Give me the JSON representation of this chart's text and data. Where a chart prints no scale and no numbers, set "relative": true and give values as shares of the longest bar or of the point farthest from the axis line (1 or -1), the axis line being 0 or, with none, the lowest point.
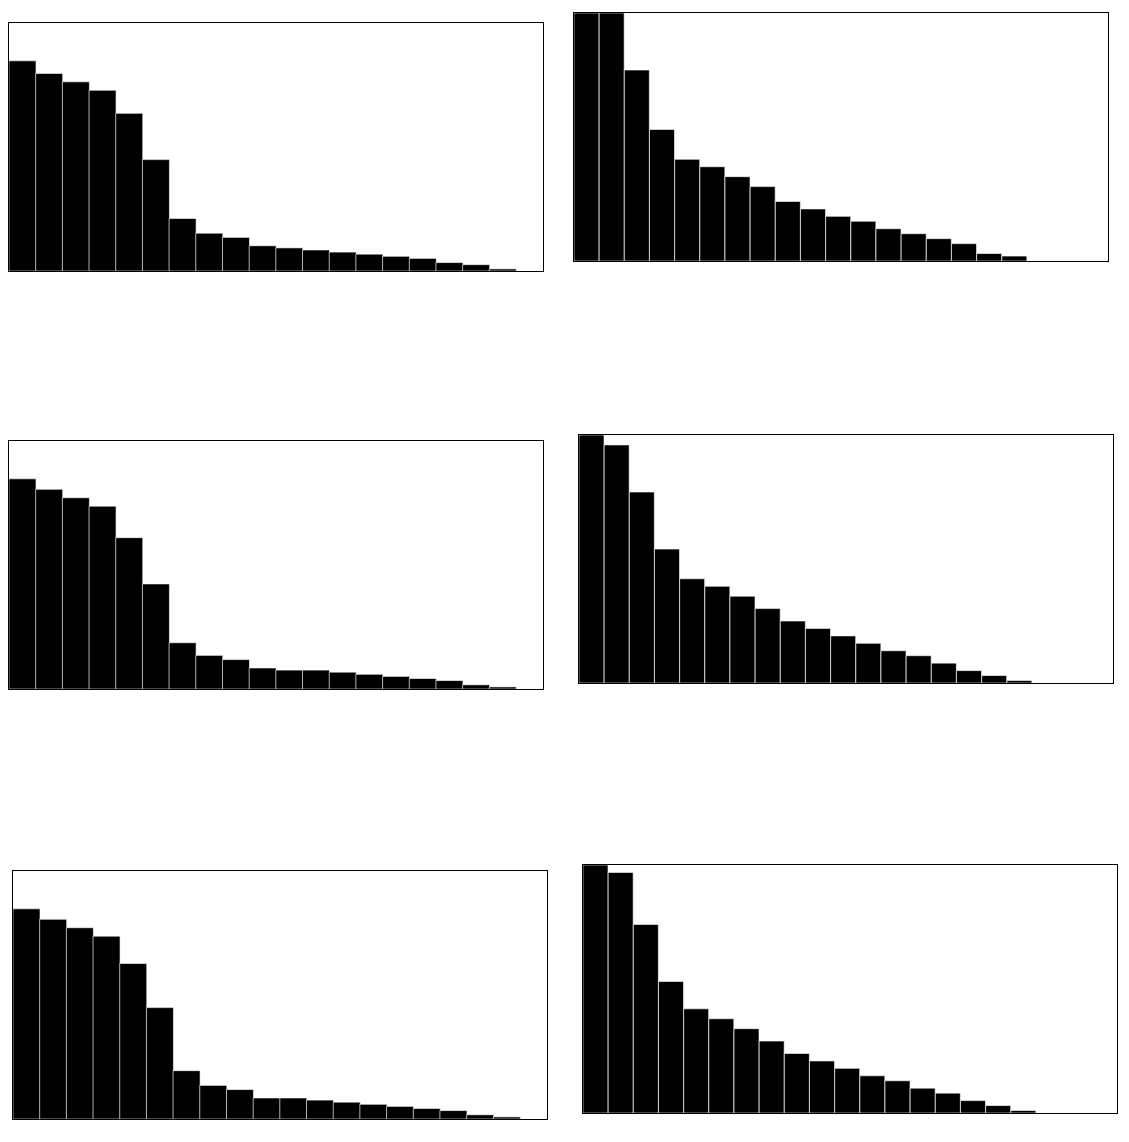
{
  "chart_data": [
    {
      "type": "bar",
      "relative": true,
      "color": "#000000",
      "categories": [
        null,
        null,
        null,
        null,
        null,
        null,
        null,
        null,
        null,
        null,
        null,
        null,
        null,
        null,
        null,
        null,
        null,
        null,
        null
      ],
      "values": [
        1,
        0.94,
        0.9,
        0.86,
        0.75,
        0.53,
        0.25,
        0.18,
        0.16,
        0.12,
        0.11,
        0.1,
        0.09,
        0.08,
        0.07,
        0.06,
        0.04,
        0.03,
        0.01
      ]
    },
    {
      "type": "bar",
      "relative": true,
      "color": "#000000",
      "categories": [
        null,
        null,
        null,
        null,
        null,
        null,
        null,
        null,
        null,
        null,
        null,
        null,
        null,
        null,
        null,
        null,
        null,
        null
      ],
      "values": [
        1,
        1,
        0.77,
        0.53,
        0.41,
        0.38,
        0.34,
        0.3,
        0.24,
        0.21,
        0.18,
        0.16,
        0.13,
        0.11,
        0.09,
        0.07,
        0.03,
        0.02
      ]
    },
    {
      "type": "bar",
      "relative": true,
      "color": "#000000",
      "categories": [
        null,
        null,
        null,
        null,
        null,
        null,
        null,
        null,
        null,
        null,
        null,
        null,
        null,
        null,
        null,
        null,
        null,
        null,
        null
      ],
      "values": [
        1,
        0.95,
        0.91,
        0.87,
        0.72,
        0.5,
        0.22,
        0.16,
        0.14,
        0.1,
        0.09,
        0.09,
        0.08,
        0.07,
        0.06,
        0.05,
        0.04,
        0.02,
        0.01
      ]
    },
    {
      "type": "bar",
      "relative": true,
      "color": "#000000",
      "categories": [
        null,
        null,
        null,
        null,
        null,
        null,
        null,
        null,
        null,
        null,
        null,
        null,
        null,
        null,
        null,
        null,
        null,
        null
      ],
      "values": [
        1,
        0.96,
        0.77,
        0.54,
        0.42,
        0.39,
        0.35,
        0.3,
        0.25,
        0.22,
        0.19,
        0.16,
        0.13,
        0.11,
        0.08,
        0.05,
        0.03,
        0.01
      ]
    },
    {
      "type": "bar",
      "relative": true,
      "color": "#000000",
      "categories": [
        null,
        null,
        null,
        null,
        null,
        null,
        null,
        null,
        null,
        null,
        null,
        null,
        null,
        null,
        null,
        null,
        null,
        null,
        null
      ],
      "values": [
        1,
        0.95,
        0.91,
        0.87,
        0.74,
        0.53,
        0.23,
        0.16,
        0.14,
        0.1,
        0.1,
        0.09,
        0.08,
        0.07,
        0.06,
        0.05,
        0.04,
        0.02,
        0.01
      ]
    },
    {
      "type": "bar",
      "relative": true,
      "color": "#000000",
      "categories": [
        null,
        null,
        null,
        null,
        null,
        null,
        null,
        null,
        null,
        null,
        null,
        null,
        null,
        null,
        null,
        null,
        null,
        null
      ],
      "values": [
        1,
        0.97,
        0.76,
        0.53,
        0.42,
        0.38,
        0.34,
        0.29,
        0.24,
        0.21,
        0.18,
        0.15,
        0.13,
        0.1,
        0.08,
        0.05,
        0.03,
        0.01
      ]
    }
  ]
}
